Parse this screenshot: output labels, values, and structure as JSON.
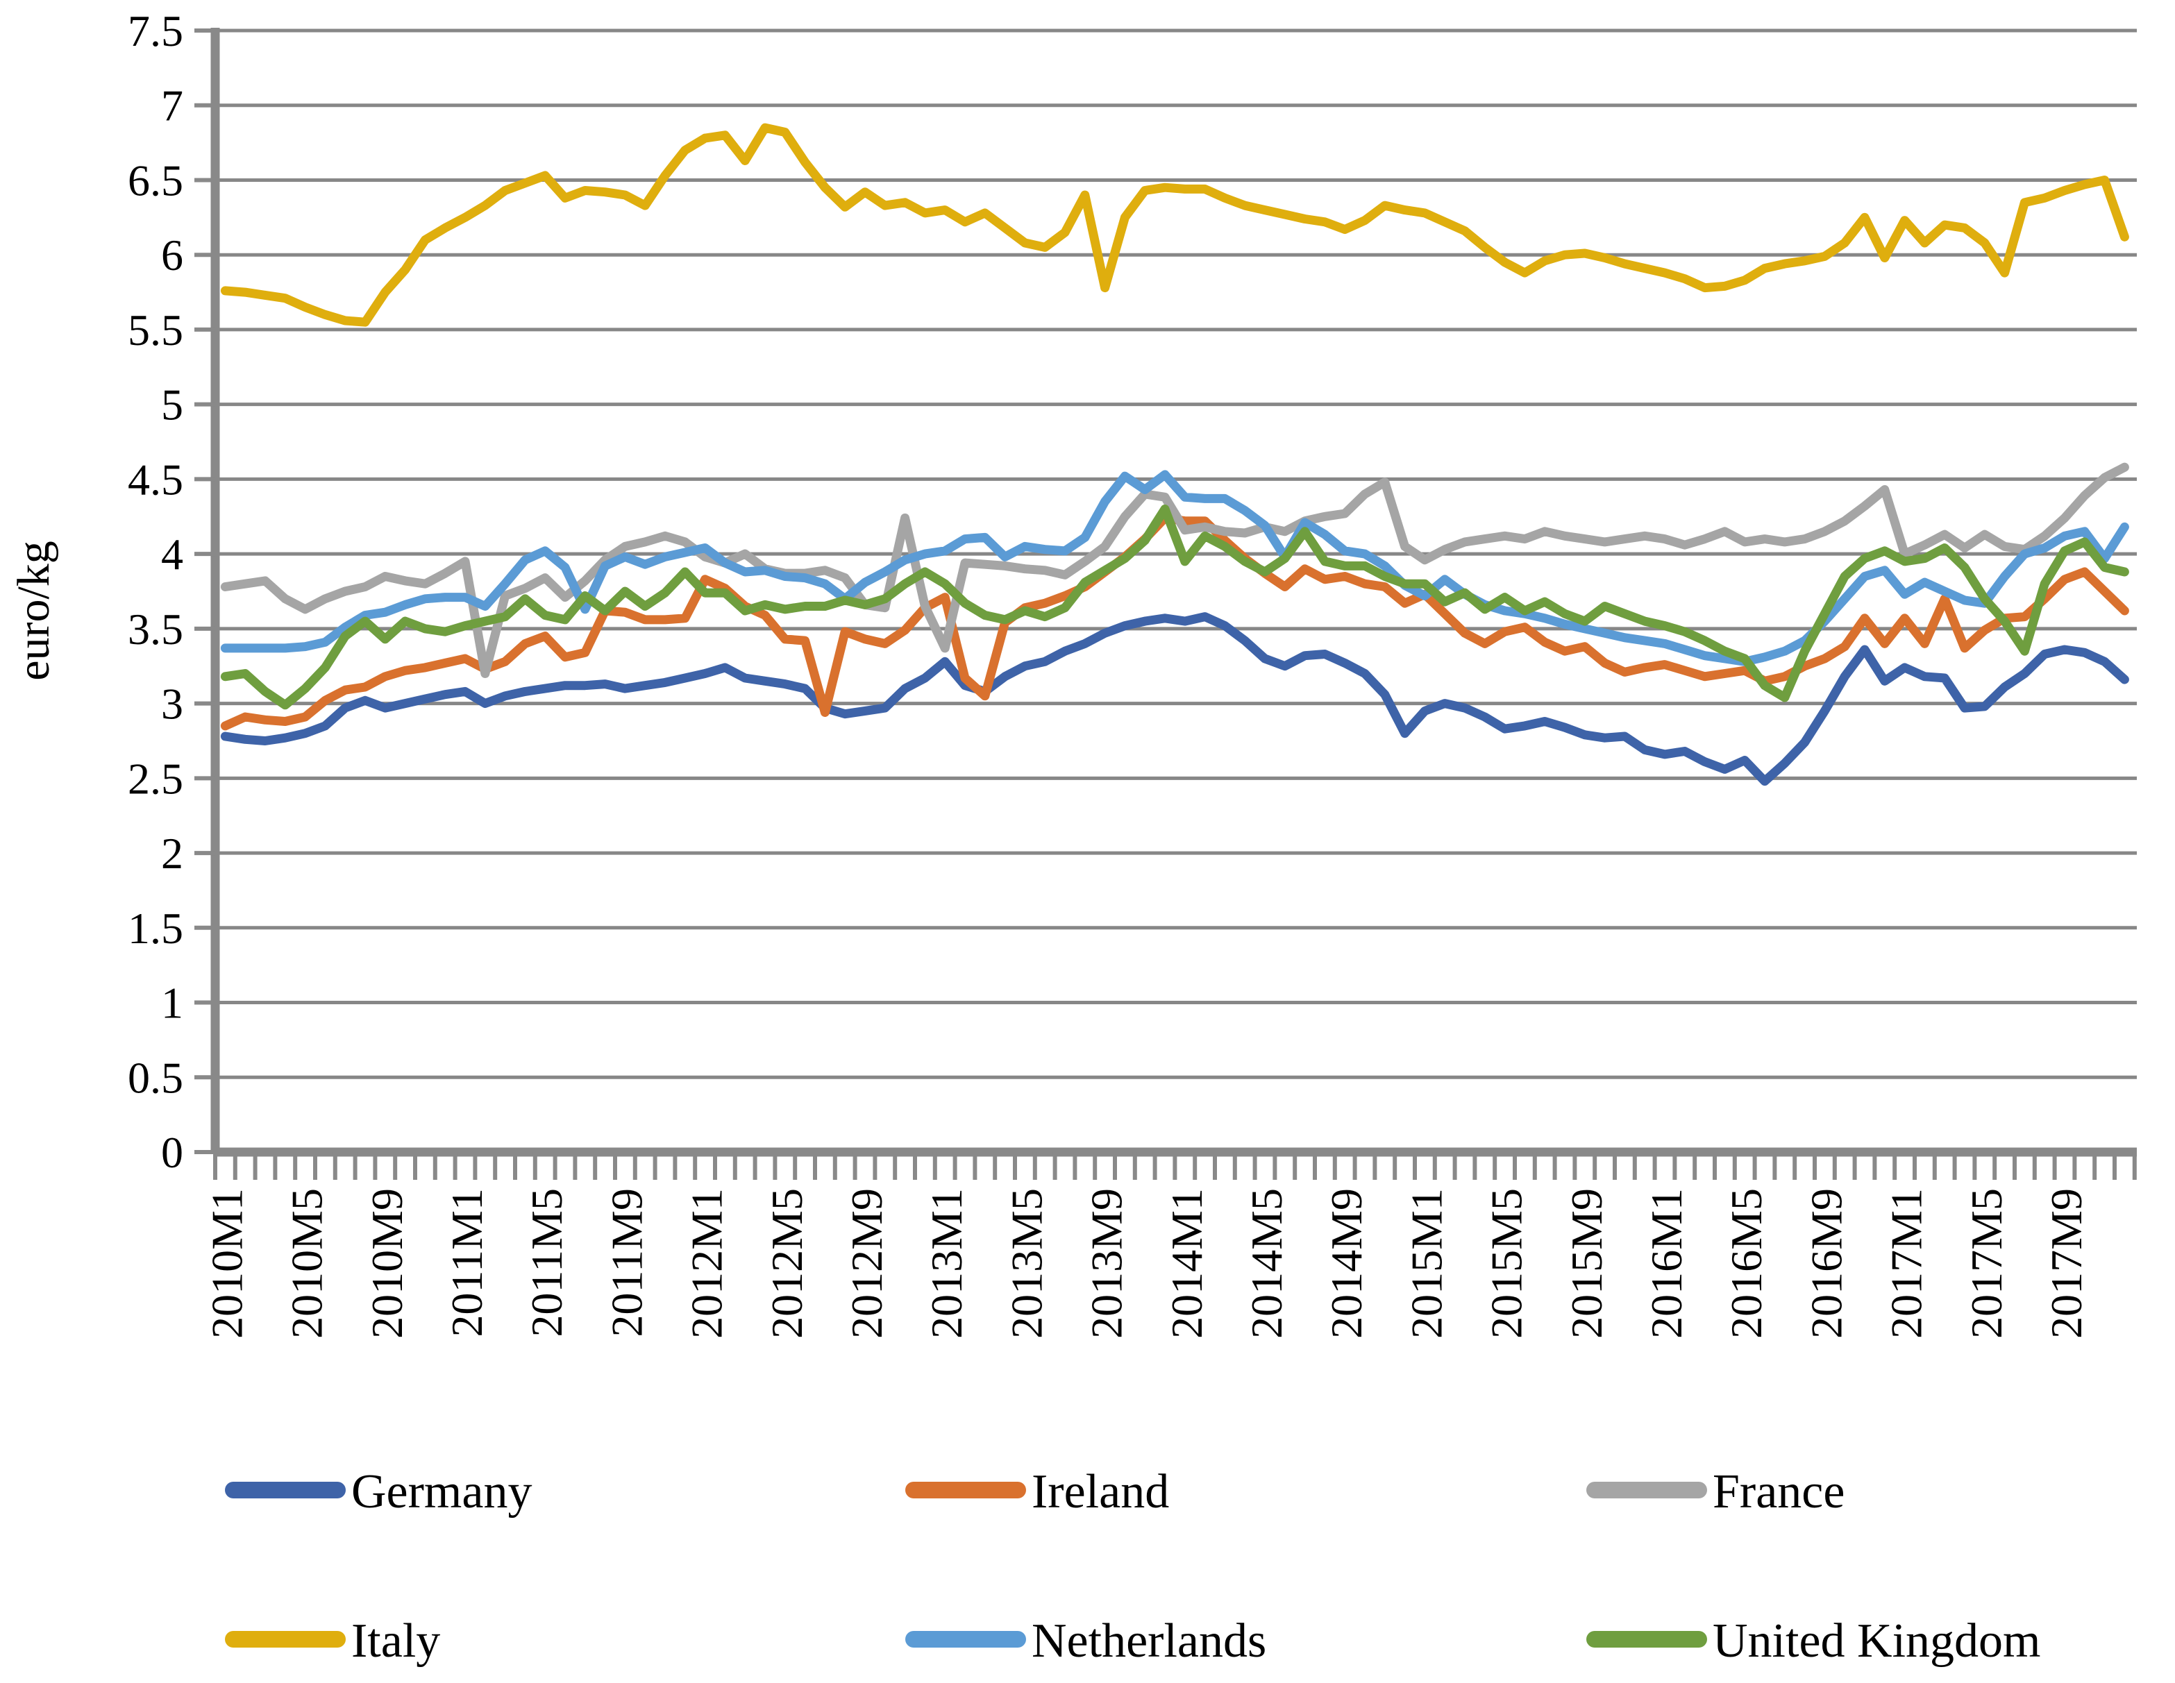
{
  "chart_data": {
    "type": "line",
    "title": "",
    "xlabel": "",
    "ylabel": "euro/kg",
    "ylim": [
      0,
      7.5
    ],
    "ytick_step": 0.5,
    "grid": "horizontal",
    "legend_position": "bottom",
    "y_tick_labels": [
      "0",
      "0.5",
      "1",
      "1.5",
      "2",
      "2.5",
      "3",
      "3.5",
      "4",
      "4.5",
      "5",
      "5.5",
      "6",
      "6.5",
      "7",
      "7.5"
    ],
    "x_tick_labels": [
      "2010M1",
      "2010M5",
      "2010M9",
      "2011M1",
      "2011M5",
      "2011M9",
      "2012M1",
      "2012M5",
      "2012M9",
      "2013M1",
      "2013M5",
      "2013M9",
      "2014M1",
      "2014M5",
      "2014M9",
      "2015M1",
      "2015M5",
      "2015M9",
      "2016M1",
      "2016M5",
      "2016M9",
      "2017M1",
      "2017M5",
      "2017M9"
    ],
    "x": [
      "2010M1",
      "2010M2",
      "2010M3",
      "2010M4",
      "2010M5",
      "2010M6",
      "2010M7",
      "2010M8",
      "2010M9",
      "2010M10",
      "2010M11",
      "2010M12",
      "2011M1",
      "2011M2",
      "2011M3",
      "2011M4",
      "2011M5",
      "2011M6",
      "2011M7",
      "2011M8",
      "2011M9",
      "2011M10",
      "2011M11",
      "2011M12",
      "2012M1",
      "2012M2",
      "2012M3",
      "2012M4",
      "2012M5",
      "2012M6",
      "2012M7",
      "2012M8",
      "2012M9",
      "2012M10",
      "2012M11",
      "2012M12",
      "2013M1",
      "2013M2",
      "2013M3",
      "2013M4",
      "2013M5",
      "2013M6",
      "2013M7",
      "2013M8",
      "2013M9",
      "2013M10",
      "2013M11",
      "2013M12",
      "2014M1",
      "2014M2",
      "2014M3",
      "2014M4",
      "2014M5",
      "2014M6",
      "2014M7",
      "2014M8",
      "2014M9",
      "2014M10",
      "2014M11",
      "2014M12",
      "2015M1",
      "2015M2",
      "2015M3",
      "2015M4",
      "2015M5",
      "2015M6",
      "2015M7",
      "2015M8",
      "2015M9",
      "2015M10",
      "2015M11",
      "2015M12",
      "2016M1",
      "2016M2",
      "2016M3",
      "2016M4",
      "2016M5",
      "2016M6",
      "2016M7",
      "2016M8",
      "2016M9",
      "2016M10",
      "2016M11",
      "2016M12",
      "2017M1",
      "2017M2",
      "2017M3",
      "2017M4",
      "2017M5",
      "2017M6",
      "2017M7",
      "2017M8",
      "2017M9",
      "2017M10",
      "2017M11",
      "2017M12"
    ],
    "series": [
      {
        "name": "Germany",
        "color": "#3E63A8",
        "values": [
          2.78,
          2.76,
          2.75,
          2.77,
          2.8,
          2.85,
          2.97,
          3.02,
          2.97,
          3.0,
          3.03,
          3.06,
          3.08,
          3.0,
          3.05,
          3.08,
          3.1,
          3.12,
          3.12,
          3.13,
          3.1,
          3.12,
          3.14,
          3.17,
          3.2,
          3.24,
          3.17,
          3.15,
          3.13,
          3.1,
          2.97,
          2.93,
          2.95,
          2.97,
          3.1,
          3.17,
          3.28,
          3.12,
          3.08,
          3.18,
          3.25,
          3.28,
          3.35,
          3.4,
          3.47,
          3.52,
          3.55,
          3.57,
          3.55,
          3.58,
          3.52,
          3.42,
          3.3,
          3.25,
          3.32,
          3.33,
          3.27,
          3.2,
          3.06,
          2.8,
          2.95,
          3.0,
          2.97,
          2.91,
          2.83,
          2.85,
          2.88,
          2.84,
          2.79,
          2.77,
          2.78,
          2.69,
          2.66,
          2.68,
          2.61,
          2.56,
          2.62,
          2.48,
          2.6,
          2.74,
          2.95,
          3.18,
          3.36,
          3.15,
          3.24,
          3.18,
          3.17,
          2.97,
          2.98,
          3.11,
          3.2,
          3.33,
          3.36,
          3.34,
          3.28,
          3.16
        ]
      },
      {
        "name": "Ireland",
        "color": "#D9712E",
        "values": [
          2.85,
          2.91,
          2.89,
          2.88,
          2.91,
          3.02,
          3.09,
          3.11,
          3.18,
          3.22,
          3.24,
          3.27,
          3.3,
          3.23,
          3.28,
          3.4,
          3.45,
          3.31,
          3.34,
          3.62,
          3.61,
          3.56,
          3.56,
          3.57,
          3.83,
          3.77,
          3.65,
          3.59,
          3.43,
          3.42,
          2.94,
          3.48,
          3.43,
          3.4,
          3.49,
          3.64,
          3.71,
          3.17,
          3.05,
          3.54,
          3.64,
          3.67,
          3.72,
          3.78,
          3.88,
          3.98,
          4.1,
          4.24,
          4.22,
          4.22,
          4.09,
          3.97,
          3.87,
          3.78,
          3.9,
          3.83,
          3.85,
          3.8,
          3.78,
          3.67,
          3.73,
          3.6,
          3.47,
          3.4,
          3.48,
          3.51,
          3.41,
          3.35,
          3.38,
          3.27,
          3.21,
          3.24,
          3.26,
          3.22,
          3.18,
          3.2,
          3.22,
          3.15,
          3.18,
          3.25,
          3.3,
          3.38,
          3.57,
          3.4,
          3.57,
          3.4,
          3.7,
          3.37,
          3.49,
          3.57,
          3.58,
          3.7,
          3.83,
          3.88,
          3.75,
          3.62
        ]
      },
      {
        "name": "France",
        "color": "#A5A5A5",
        "values": [
          3.78,
          3.8,
          3.82,
          3.7,
          3.63,
          3.7,
          3.75,
          3.78,
          3.85,
          3.82,
          3.8,
          3.87,
          3.95,
          3.2,
          3.72,
          3.77,
          3.84,
          3.71,
          3.82,
          3.96,
          4.05,
          4.08,
          4.12,
          4.08,
          3.98,
          3.94,
          4.0,
          3.9,
          3.87,
          3.87,
          3.89,
          3.84,
          3.66,
          3.64,
          4.24,
          3.65,
          3.37,
          3.94,
          3.93,
          3.92,
          3.9,
          3.89,
          3.86,
          3.95,
          4.05,
          4.25,
          4.4,
          4.38,
          4.16,
          4.18,
          4.15,
          4.14,
          4.18,
          4.15,
          4.22,
          4.25,
          4.27,
          4.4,
          4.48,
          4.05,
          3.96,
          4.03,
          4.08,
          4.1,
          4.12,
          4.1,
          4.15,
          4.12,
          4.1,
          4.08,
          4.1,
          4.12,
          4.1,
          4.06,
          4.1,
          4.15,
          4.08,
          4.1,
          4.08,
          4.1,
          4.15,
          4.22,
          4.32,
          4.43,
          4.0,
          4.06,
          4.13,
          4.04,
          4.13,
          4.05,
          4.03,
          4.12,
          4.24,
          4.39,
          4.51,
          4.58
        ]
      },
      {
        "name": "Italy",
        "color": "#DFAE0E",
        "values": [
          5.76,
          5.75,
          5.73,
          5.71,
          5.65,
          5.6,
          5.56,
          5.55,
          5.75,
          5.9,
          6.1,
          6.18,
          6.25,
          6.33,
          6.43,
          6.48,
          6.53,
          6.38,
          6.43,
          6.42,
          6.4,
          6.33,
          6.53,
          6.7,
          6.78,
          6.8,
          6.63,
          6.85,
          6.82,
          6.62,
          6.45,
          6.32,
          6.42,
          6.33,
          6.35,
          6.28,
          6.3,
          6.22,
          6.28,
          6.18,
          6.08,
          6.05,
          6.15,
          6.4,
          5.78,
          6.25,
          6.43,
          6.45,
          6.44,
          6.44,
          6.38,
          6.33,
          6.3,
          6.27,
          6.24,
          6.22,
          6.17,
          6.23,
          6.33,
          6.3,
          6.28,
          6.22,
          6.16,
          6.05,
          5.95,
          5.88,
          5.96,
          6.0,
          6.01,
          5.98,
          5.94,
          5.91,
          5.88,
          5.84,
          5.78,
          5.79,
          5.83,
          5.91,
          5.94,
          5.96,
          5.99,
          6.08,
          6.25,
          5.98,
          6.23,
          6.08,
          6.2,
          6.18,
          6.08,
          5.88,
          6.35,
          6.38,
          6.43,
          6.47,
          6.5,
          6.12
        ]
      },
      {
        "name": "Netherlands",
        "color": "#5B9BD5",
        "values": [
          3.37,
          3.37,
          3.37,
          3.37,
          3.38,
          3.41,
          3.51,
          3.59,
          3.61,
          3.66,
          3.7,
          3.71,
          3.71,
          3.65,
          3.8,
          3.96,
          4.02,
          3.91,
          3.63,
          3.92,
          3.98,
          3.93,
          3.98,
          4.01,
          4.04,
          3.94,
          3.88,
          3.89,
          3.85,
          3.84,
          3.8,
          3.7,
          3.81,
          3.88,
          3.96,
          4.0,
          4.02,
          4.1,
          4.11,
          3.98,
          4.05,
          4.03,
          4.02,
          4.11,
          4.35,
          4.52,
          4.43,
          4.53,
          4.38,
          4.37,
          4.37,
          4.29,
          4.19,
          3.98,
          4.21,
          4.13,
          4.02,
          4.0,
          3.92,
          3.79,
          3.72,
          3.83,
          3.73,
          3.66,
          3.62,
          3.6,
          3.57,
          3.53,
          3.5,
          3.47,
          3.44,
          3.42,
          3.4,
          3.36,
          3.32,
          3.3,
          3.28,
          3.31,
          3.35,
          3.42,
          3.55,
          3.7,
          3.85,
          3.89,
          3.73,
          3.81,
          3.75,
          3.69,
          3.67,
          3.85,
          4.0,
          4.04,
          4.12,
          4.15,
          3.97,
          4.18
        ]
      },
      {
        "name": "United Kingdom",
        "color": "#6F9E3F",
        "values": [
          3.18,
          3.2,
          3.08,
          2.99,
          3.1,
          3.24,
          3.45,
          3.55,
          3.43,
          3.55,
          3.5,
          3.48,
          3.52,
          3.55,
          3.58,
          3.7,
          3.59,
          3.56,
          3.72,
          3.62,
          3.75,
          3.65,
          3.74,
          3.88,
          3.74,
          3.74,
          3.62,
          3.66,
          3.63,
          3.65,
          3.65,
          3.69,
          3.66,
          3.7,
          3.8,
          3.88,
          3.8,
          3.67,
          3.59,
          3.56,
          3.62,
          3.58,
          3.64,
          3.81,
          3.89,
          3.97,
          4.09,
          4.3,
          3.95,
          4.12,
          4.05,
          3.95,
          3.88,
          3.97,
          4.15,
          3.95,
          3.92,
          3.92,
          3.85,
          3.8,
          3.8,
          3.68,
          3.74,
          3.63,
          3.71,
          3.62,
          3.68,
          3.6,
          3.55,
          3.65,
          3.6,
          3.55,
          3.52,
          3.48,
          3.42,
          3.35,
          3.3,
          3.12,
          3.04,
          3.35,
          3.6,
          3.85,
          3.97,
          4.02,
          3.95,
          3.97,
          4.04,
          3.91,
          3.7,
          3.55,
          3.35,
          3.8,
          4.02,
          4.08,
          3.91,
          3.88
        ]
      }
    ]
  }
}
